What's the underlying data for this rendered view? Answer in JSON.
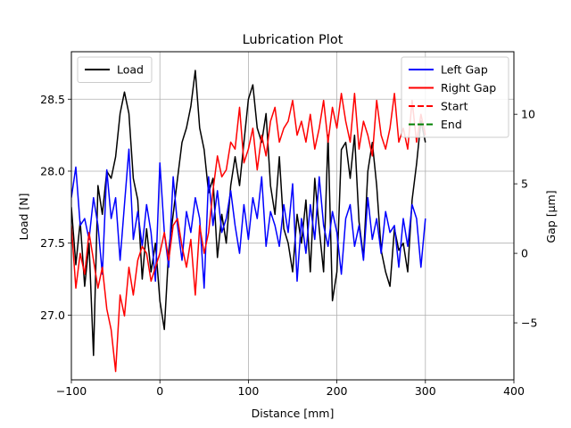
{
  "chart_data": {
    "type": "line",
    "title": "Lubrication Plot",
    "xlabel": "Distance [mm]",
    "ylabel_left": "Load [N]",
    "ylabel_right": "Gap [µm]",
    "xlim": [
      -100,
      400
    ],
    "ylim_left": [
      26.55,
      28.83
    ],
    "ylim_right": [
      -9.1,
      14.5
    ],
    "grid": true,
    "x_ticks": [
      -100,
      0,
      100,
      200,
      300,
      400
    ],
    "y_left_ticks": [
      27.0,
      27.5,
      28.0,
      28.5
    ],
    "y_right_ticks": [
      -5,
      0,
      5,
      10
    ],
    "x_tick_labels": [
      "−100",
      "0",
      "100",
      "200",
      "300",
      "400"
    ],
    "y_left_tick_labels": [
      "27.0",
      "27.5",
      "28.0",
      "28.5"
    ],
    "y_right_tick_labels": [
      "−5",
      "0",
      "5",
      "10"
    ],
    "legend_left": {
      "placement": "top-left",
      "entries": [
        {
          "label": "Load",
          "color": "#000000",
          "dash": false
        }
      ]
    },
    "legend_right": {
      "placement": "top-right",
      "entries": [
        {
          "label": "Left Gap",
          "color": "#0000ff",
          "dash": false
        },
        {
          "label": "Right Gap",
          "color": "#ff0000",
          "dash": false
        },
        {
          "label": "Start",
          "color": "#ff0000",
          "dash": true
        },
        {
          "label": "End",
          "color": "#008000",
          "dash": true
        }
      ]
    },
    "series": [
      {
        "name": "Load",
        "axis": "left",
        "color": "#000000",
        "x": [
          -100,
          -95,
          -90,
          -85,
          -80,
          -75,
          -70,
          -65,
          -60,
          -55,
          -50,
          -45,
          -40,
          -35,
          -30,
          -25,
          -20,
          -15,
          -10,
          -5,
          0,
          5,
          10,
          15,
          20,
          25,
          30,
          35,
          40,
          45,
          50,
          55,
          60,
          65,
          70,
          75,
          80,
          85,
          90,
          95,
          100,
          105,
          110,
          115,
          120,
          125,
          130,
          135,
          140,
          145,
          150,
          155,
          160,
          165,
          170,
          175,
          180,
          185,
          190,
          195,
          200,
          205,
          210,
          215,
          220,
          225,
          230,
          235,
          240,
          245,
          250,
          255,
          260,
          265,
          270,
          275,
          280,
          285,
          290,
          295,
          300
        ],
        "y": [
          27.75,
          27.35,
          27.65,
          27.2,
          27.5,
          26.72,
          27.9,
          27.7,
          28.0,
          27.95,
          28.1,
          28.4,
          28.55,
          28.4,
          27.95,
          27.8,
          27.25,
          27.6,
          27.3,
          27.5,
          27.1,
          26.9,
          27.45,
          27.7,
          27.95,
          28.2,
          28.3,
          28.45,
          28.7,
          28.3,
          28.15,
          27.85,
          27.95,
          27.4,
          27.7,
          27.5,
          27.9,
          28.1,
          27.9,
          28.2,
          28.5,
          28.6,
          28.3,
          28.2,
          28.4,
          27.9,
          27.7,
          28.1,
          27.6,
          27.5,
          27.3,
          27.7,
          27.5,
          27.8,
          27.3,
          27.95,
          27.6,
          27.3,
          28.25,
          27.1,
          27.3,
          28.15,
          28.2,
          27.95,
          28.25,
          27.65,
          27.4,
          28.0,
          28.2,
          27.9,
          27.45,
          27.3,
          27.2,
          27.6,
          27.45,
          27.5,
          27.3,
          27.8,
          28.05,
          28.35,
          28.2
        ]
      },
      {
        "name": "Left Gap",
        "axis": "right",
        "color": "#0000ff",
        "x": [
          -100,
          -95,
          -90,
          -85,
          -80,
          -75,
          -70,
          -65,
          -60,
          -55,
          -50,
          -45,
          -40,
          -35,
          -30,
          -25,
          -20,
          -15,
          -10,
          -5,
          0,
          5,
          10,
          15,
          20,
          25,
          30,
          35,
          40,
          45,
          50,
          55,
          60,
          65,
          70,
          75,
          80,
          85,
          90,
          95,
          100,
          105,
          110,
          115,
          120,
          125,
          130,
          135,
          140,
          145,
          150,
          155,
          160,
          165,
          170,
          175,
          180,
          185,
          190,
          195,
          200,
          205,
          210,
          215,
          220,
          225,
          230,
          235,
          240,
          245,
          250,
          255,
          260,
          265,
          270,
          275,
          280,
          285,
          290,
          295,
          300
        ],
        "y": [
          4.0,
          6.2,
          2.0,
          2.5,
          1.0,
          4.0,
          2.0,
          -1.5,
          6.0,
          2.5,
          4.0,
          -0.5,
          3.5,
          7.5,
          1.0,
          3.0,
          0.5,
          3.5,
          1.5,
          -2.0,
          6.5,
          1.5,
          -1.0,
          5.5,
          2.0,
          -0.5,
          3.0,
          1.5,
          4.0,
          2.5,
          -2.5,
          5.5,
          2.0,
          4.5,
          1.5,
          2.5,
          4.5,
          2.0,
          0.0,
          3.5,
          1.0,
          4.0,
          2.5,
          5.5,
          0.5,
          3.0,
          2.0,
          0.5,
          3.5,
          1.5,
          5.0,
          -2.0,
          2.5,
          0.0,
          3.5,
          1.0,
          5.5,
          2.0,
          0.5,
          3.0,
          1.5,
          -1.5,
          2.5,
          3.5,
          0.5,
          2.0,
          -0.5,
          4.0,
          1.0,
          2.5,
          0.0,
          3.0,
          1.5,
          2.0,
          -1.0,
          2.5,
          0.5,
          3.5,
          2.5,
          -1.0,
          2.5
        ]
      },
      {
        "name": "Right Gap",
        "axis": "right",
        "color": "#ff0000",
        "x": [
          -100,
          -95,
          -90,
          -85,
          -80,
          -75,
          -70,
          -65,
          -60,
          -55,
          -50,
          -45,
          -40,
          -35,
          -30,
          -25,
          -20,
          -15,
          -10,
          -5,
          0,
          5,
          10,
          15,
          20,
          25,
          30,
          35,
          40,
          45,
          50,
          55,
          60,
          65,
          70,
          75,
          80,
          85,
          90,
          95,
          100,
          105,
          110,
          115,
          120,
          125,
          130,
          135,
          140,
          145,
          150,
          155,
          160,
          165,
          170,
          175,
          180,
          185,
          190,
          195,
          200,
          205,
          210,
          215,
          220,
          225,
          230,
          235,
          240,
          245,
          250,
          255,
          260,
          265,
          270,
          275,
          280,
          285,
          290,
          295,
          300
        ],
        "y": [
          2.0,
          -2.5,
          0.0,
          -1.5,
          1.5,
          -0.5,
          -2.5,
          -1.0,
          -4.0,
          -5.5,
          -8.5,
          -3.0,
          -4.5,
          -1.0,
          -3.0,
          -0.5,
          0.5,
          0.0,
          -2.0,
          -1.0,
          0.0,
          1.5,
          -0.5,
          2.0,
          2.5,
          0.5,
          -1.0,
          1.0,
          -3.0,
          2.0,
          0.0,
          1.5,
          4.5,
          7.0,
          5.5,
          6.0,
          8.0,
          7.5,
          10.5,
          6.5,
          7.5,
          9.0,
          6.0,
          8.5,
          7.0,
          9.5,
          10.5,
          8.0,
          9.0,
          9.5,
          11.0,
          8.5,
          9.5,
          8.0,
          10.0,
          7.5,
          9.0,
          11.0,
          8.0,
          10.5,
          9.0,
          11.5,
          9.5,
          8.0,
          11.5,
          7.5,
          9.5,
          8.5,
          7.0,
          11.0,
          8.5,
          7.5,
          9.0,
          11.5,
          8.0,
          9.0,
          7.5,
          11.0,
          8.0,
          10.0,
          8.5
        ]
      }
    ]
  }
}
